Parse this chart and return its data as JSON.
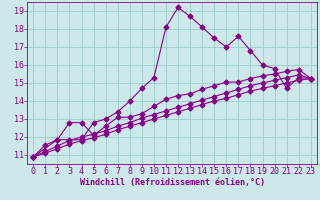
{
  "xlabel": "Windchill (Refroidissement éolien,°C)",
  "bg_color": "#cce8e8",
  "grid_color": "#99cccc",
  "line_color": "#880088",
  "marker": "D",
  "ylim": [
    10.5,
    19.5
  ],
  "xlim": [
    -0.5,
    23.5
  ],
  "yticks": [
    11,
    12,
    13,
    14,
    15,
    16,
    17,
    18,
    19
  ],
  "xticks": [
    0,
    1,
    2,
    3,
    4,
    5,
    6,
    7,
    8,
    9,
    10,
    11,
    12,
    13,
    14,
    15,
    16,
    17,
    18,
    19,
    20,
    21,
    22,
    23
  ],
  "curve1_x": [
    0,
    1,
    2,
    3,
    4,
    5,
    6,
    7,
    8,
    9,
    10,
    11,
    12,
    13,
    14,
    15,
    16,
    17,
    18,
    19,
    20,
    21,
    22,
    23
  ],
  "curve1_y": [
    10.9,
    11.55,
    11.85,
    11.85,
    11.85,
    12.8,
    13.0,
    13.4,
    14.0,
    14.7,
    15.3,
    18.1,
    19.2,
    18.7,
    18.1,
    17.5,
    17.0,
    17.6,
    16.8,
    16.0,
    15.8,
    14.7,
    15.3,
    15.25
  ],
  "curve2_x": [
    0,
    2,
    3,
    4,
    5,
    6,
    7,
    8,
    9,
    10,
    11,
    12,
    13,
    14,
    15,
    16,
    17,
    18,
    19,
    20,
    21,
    22,
    23
  ],
  "curve2_y": [
    10.9,
    11.85,
    12.8,
    12.8,
    12.1,
    12.6,
    13.1,
    13.1,
    13.3,
    13.7,
    14.1,
    14.3,
    14.4,
    14.65,
    14.85,
    15.05,
    15.05,
    15.25,
    15.4,
    15.5,
    15.65,
    15.75,
    15.25
  ],
  "curve3_x": [
    0,
    1,
    2,
    3,
    4,
    5,
    6,
    7,
    8,
    9,
    10,
    11,
    12,
    13,
    14,
    15,
    16,
    17,
    18,
    19,
    20,
    21,
    22,
    23
  ],
  "curve3_y": [
    10.9,
    11.2,
    11.5,
    11.8,
    12.0,
    12.15,
    12.35,
    12.6,
    12.8,
    13.05,
    13.25,
    13.45,
    13.65,
    13.85,
    14.05,
    14.25,
    14.45,
    14.65,
    14.85,
    15.0,
    15.15,
    15.3,
    15.45,
    15.25
  ],
  "curve4_x": [
    0,
    1,
    2,
    3,
    4,
    5,
    6,
    7,
    8,
    9,
    10,
    11,
    12,
    13,
    14,
    15,
    16,
    17,
    18,
    19,
    20,
    21,
    22,
    23
  ],
  "curve4_y": [
    10.9,
    11.1,
    11.35,
    11.6,
    11.8,
    11.95,
    12.15,
    12.4,
    12.6,
    12.8,
    13.0,
    13.2,
    13.4,
    13.6,
    13.8,
    14.0,
    14.15,
    14.35,
    14.55,
    14.7,
    14.85,
    15.0,
    15.15,
    15.25
  ],
  "xlabel_fontsize": 6,
  "tick_fontsize": 6,
  "line_width": 0.8,
  "marker_size": 2.5
}
